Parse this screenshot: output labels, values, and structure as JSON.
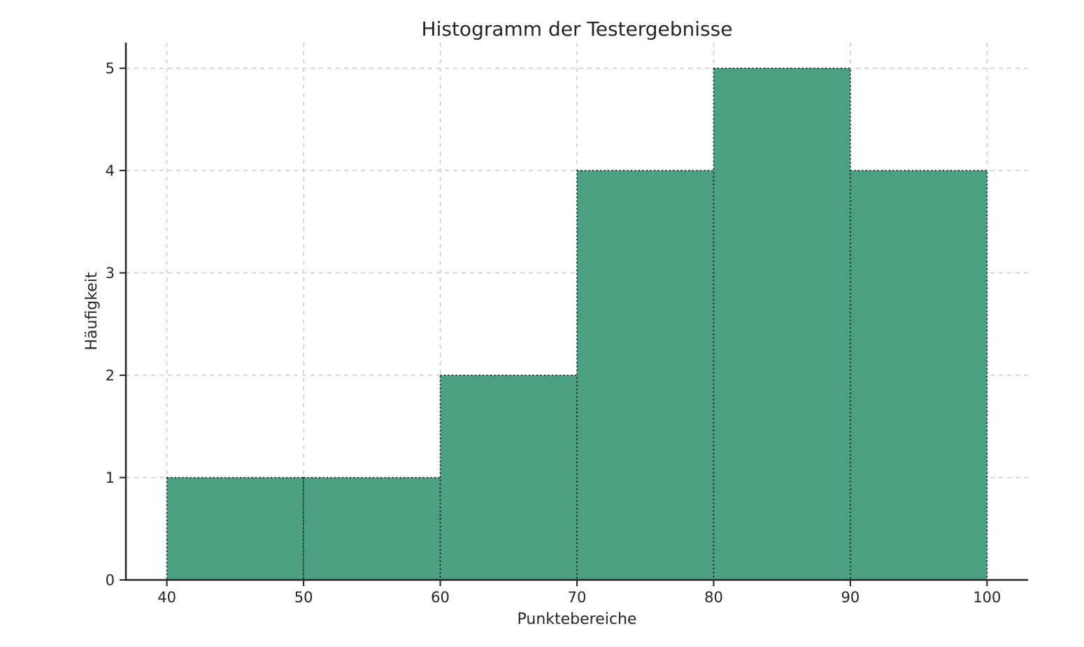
{
  "figure": {
    "background": "#ffffff"
  },
  "chart_data": {
    "type": "bar",
    "subtype": "histogram",
    "title": "Histogramm der Testergebnisse",
    "xlabel": "Punktebereiche",
    "ylabel": "Häufigkeit",
    "bin_edges": [
      40,
      50,
      60,
      70,
      80,
      90,
      100
    ],
    "values": [
      1,
      1,
      2,
      4,
      5,
      4
    ],
    "categories": [
      "40-50",
      "50-60",
      "60-70",
      "70-80",
      "80-90",
      "90-100"
    ],
    "xticks": [
      "40",
      "50",
      "60",
      "70",
      "80",
      "90",
      "100"
    ],
    "xtick_values": [
      40,
      50,
      60,
      70,
      80,
      90,
      100
    ],
    "yticks": [
      "0",
      "1",
      "2",
      "3",
      "4",
      "5"
    ],
    "ytick_values": [
      0,
      1,
      2,
      3,
      4,
      5
    ],
    "xlim": [
      37,
      103
    ],
    "ylim": [
      0,
      5.25
    ],
    "grid": true,
    "legend": false,
    "colors": {
      "bar_fill": "#4aa081",
      "bar_edge": "#111111",
      "grid_line": "#c9c9c9",
      "axis_line": "#262626",
      "text": "#262626"
    },
    "styles": {
      "bar_edge_style": "dotted",
      "grid_line_style": "dashed"
    }
  }
}
